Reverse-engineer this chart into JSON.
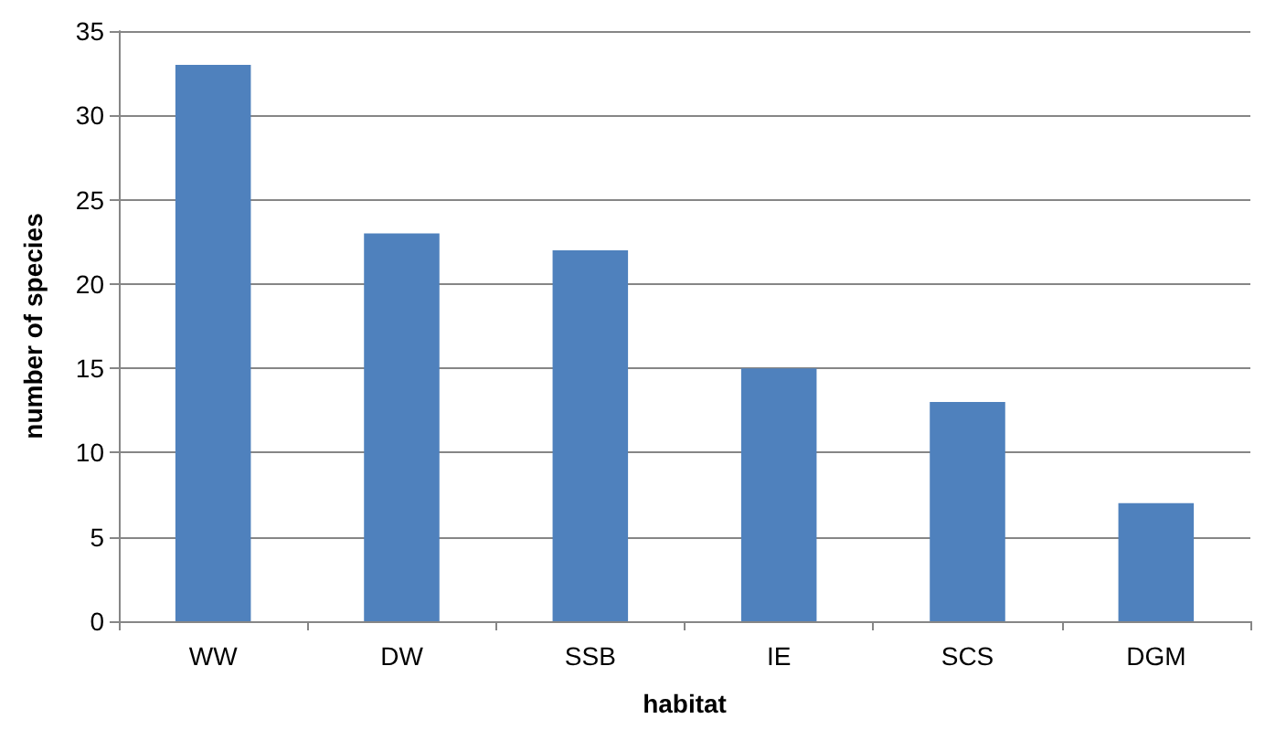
{
  "chart_data": {
    "type": "bar",
    "xlabel": "habitat",
    "ylabel": "number of species",
    "categories": [
      "WW",
      "DW",
      "SSB",
      "IE",
      "SCS",
      "DGM"
    ],
    "values": [
      33,
      23,
      22,
      15,
      13,
      7
    ],
    "color": "#4f81bd",
    "ylim": [
      0,
      35
    ],
    "yticks": [
      0,
      5,
      10,
      15,
      20,
      25,
      30,
      35
    ],
    "grid": "y"
  }
}
